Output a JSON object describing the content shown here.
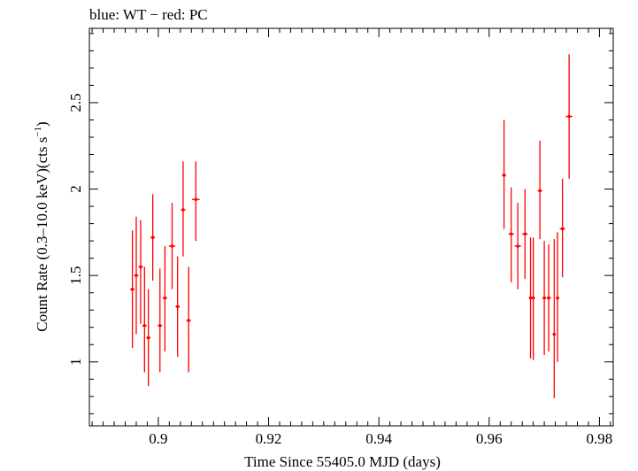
{
  "chart_data": {
    "type": "scatter",
    "title": "blue: WT − red: PC",
    "xlabel": "Time Since 55405.0 MJD (days)",
    "ylabel_main": "Count Rate (0.3–10.0 keV)(cts s",
    "ylabel_sup": "−1",
    "ylabel_end": ")",
    "xlim": [
      0.8875,
      0.9825
    ],
    "ylim": [
      0.63,
      2.93
    ],
    "x_ticks": [
      0.9,
      0.92,
      0.94,
      0.96,
      0.98
    ],
    "x_tick_labels": [
      "0.9",
      "0.92",
      "0.94",
      "0.96",
      "0.98"
    ],
    "y_ticks": [
      1,
      1.5,
      2,
      2.5
    ],
    "y_tick_labels": [
      "1",
      "1.5",
      "2",
      "2.5"
    ],
    "grid": false,
    "series": [
      {
        "color": "#ff0000",
        "points": [
          {
            "x": 0.8953,
            "y": 1.42,
            "lo": 1.08,
            "hi": 1.76,
            "xerr": 0.0004
          },
          {
            "x": 0.896,
            "y": 1.5,
            "lo": 1.16,
            "hi": 1.84,
            "xerr": 0.0004
          },
          {
            "x": 0.8968,
            "y": 1.55,
            "lo": 1.22,
            "hi": 1.82,
            "xerr": 0.0004
          },
          {
            "x": 0.8975,
            "y": 1.21,
            "lo": 0.94,
            "hi": 1.55,
            "xerr": 0.0004
          },
          {
            "x": 0.8982,
            "y": 1.14,
            "lo": 0.86,
            "hi": 1.42,
            "xerr": 0.0004
          },
          {
            "x": 0.899,
            "y": 1.72,
            "lo": 1.47,
            "hi": 1.97,
            "xerr": 0.0004
          },
          {
            "x": 0.9003,
            "y": 1.21,
            "lo": 0.94,
            "hi": 1.54,
            "xerr": 0.0004
          },
          {
            "x": 0.9012,
            "y": 1.37,
            "lo": 1.06,
            "hi": 1.67,
            "xerr": 0.0004
          },
          {
            "x": 0.9025,
            "y": 1.67,
            "lo": 1.42,
            "hi": 1.92,
            "xerr": 0.0006
          },
          {
            "x": 0.9035,
            "y": 1.32,
            "lo": 1.03,
            "hi": 1.61,
            "xerr": 0.0004
          },
          {
            "x": 0.9045,
            "y": 1.88,
            "lo": 1.61,
            "hi": 2.16,
            "xerr": 0.0004
          },
          {
            "x": 0.9055,
            "y": 1.24,
            "lo": 0.94,
            "hi": 1.55,
            "xerr": 0.0004
          },
          {
            "x": 0.9068,
            "y": 1.94,
            "lo": 1.7,
            "hi": 2.16,
            "xerr": 0.0007
          },
          {
            "x": 0.9627,
            "y": 2.08,
            "lo": 1.77,
            "hi": 2.4,
            "xerr": 0.0004
          },
          {
            "x": 0.964,
            "y": 1.74,
            "lo": 1.46,
            "hi": 2.01,
            "xerr": 0.0005
          },
          {
            "x": 0.9652,
            "y": 1.67,
            "lo": 1.42,
            "hi": 1.92,
            "xerr": 0.0006
          },
          {
            "x": 0.9665,
            "y": 1.74,
            "lo": 1.48,
            "hi": 2.0,
            "xerr": 0.0005
          },
          {
            "x": 0.9675,
            "y": 1.37,
            "lo": 1.02,
            "hi": 1.72,
            "xerr": 0.0003
          },
          {
            "x": 0.968,
            "y": 1.37,
            "lo": 1.01,
            "hi": 1.72,
            "xerr": 0.0003
          },
          {
            "x": 0.9692,
            "y": 1.99,
            "lo": 1.71,
            "hi": 2.28,
            "xerr": 0.0004
          },
          {
            "x": 0.97,
            "y": 1.37,
            "lo": 1.04,
            "hi": 1.7,
            "xerr": 0.0003
          },
          {
            "x": 0.9708,
            "y": 1.37,
            "lo": 1.06,
            "hi": 1.68,
            "xerr": 0.0004
          },
          {
            "x": 0.9718,
            "y": 1.16,
            "lo": 0.79,
            "hi": 1.71,
            "xerr": 0.0002
          },
          {
            "x": 0.9724,
            "y": 1.37,
            "lo": 1.0,
            "hi": 1.75,
            "xerr": 0.0003
          },
          {
            "x": 0.9733,
            "y": 1.77,
            "lo": 1.49,
            "hi": 2.06,
            "xerr": 0.0005
          },
          {
            "x": 0.9745,
            "y": 2.42,
            "lo": 2.06,
            "hi": 2.78,
            "xerr": 0.0006
          }
        ]
      }
    ]
  }
}
